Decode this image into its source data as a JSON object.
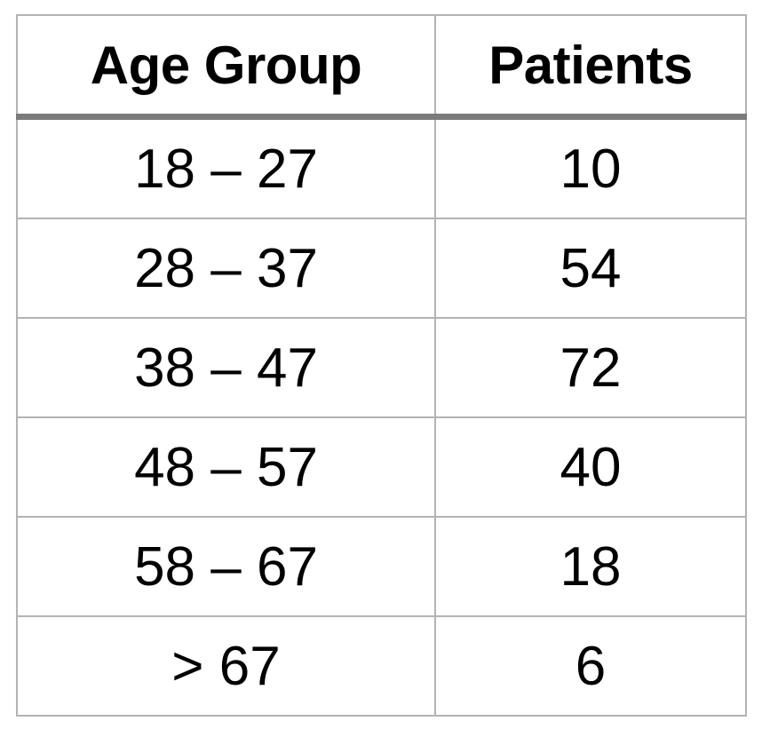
{
  "chart_data": {
    "type": "table",
    "columns": [
      "Age Group",
      "Patients"
    ],
    "rows": [
      {
        "age_group": "18 – 27",
        "patients": "10"
      },
      {
        "age_group": "28 – 37",
        "patients": "54"
      },
      {
        "age_group": "38 – 47",
        "patients": "72"
      },
      {
        "age_group": "48 – 57",
        "patients": "40"
      },
      {
        "age_group": "58 – 67",
        "patients": "18"
      },
      {
        "age_group": "> 67",
        "patients": "6"
      }
    ]
  }
}
